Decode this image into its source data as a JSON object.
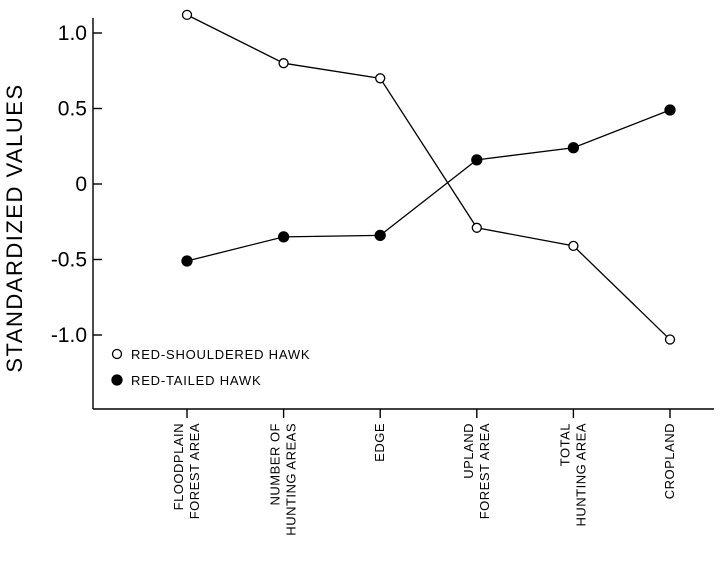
{
  "chart_data": {
    "type": "line",
    "title": "",
    "xlabel": "",
    "ylabel": "STANDARDIZED VALUES",
    "ylim": [
      -1.55,
      1.1
    ],
    "yticks": [
      {
        "value": 1.0,
        "label": "1.0"
      },
      {
        "value": 0.5,
        "label": "0.5"
      },
      {
        "value": 0,
        "label": "0"
      },
      {
        "value": -0.5,
        "label": "-0.5"
      },
      {
        "value": -1.0,
        "label": "-1.0"
      }
    ],
    "categories": [
      [
        "FLOODPLAIN",
        "FOREST AREA"
      ],
      [
        "NUMBER OF",
        "HUNTING AREAS"
      ],
      [
        "EDGE"
      ],
      [
        "UPLAND",
        "FOREST AREA"
      ],
      [
        "TOTAL",
        "HUNTING AREA"
      ],
      [
        "CROPLAND"
      ]
    ],
    "series": [
      {
        "name": "RED-SHOULDERED HAWK",
        "marker": "open-circle",
        "values": [
          1.12,
          0.8,
          0.7,
          -0.29,
          -0.41,
          -1.03
        ]
      },
      {
        "name": "RED-TAILED HAWK",
        "marker": "filled-circle",
        "values": [
          -0.51,
          -0.35,
          -0.34,
          0.16,
          0.24,
          0.49
        ]
      }
    ],
    "grid": false,
    "legend_position": "bottom-left"
  }
}
